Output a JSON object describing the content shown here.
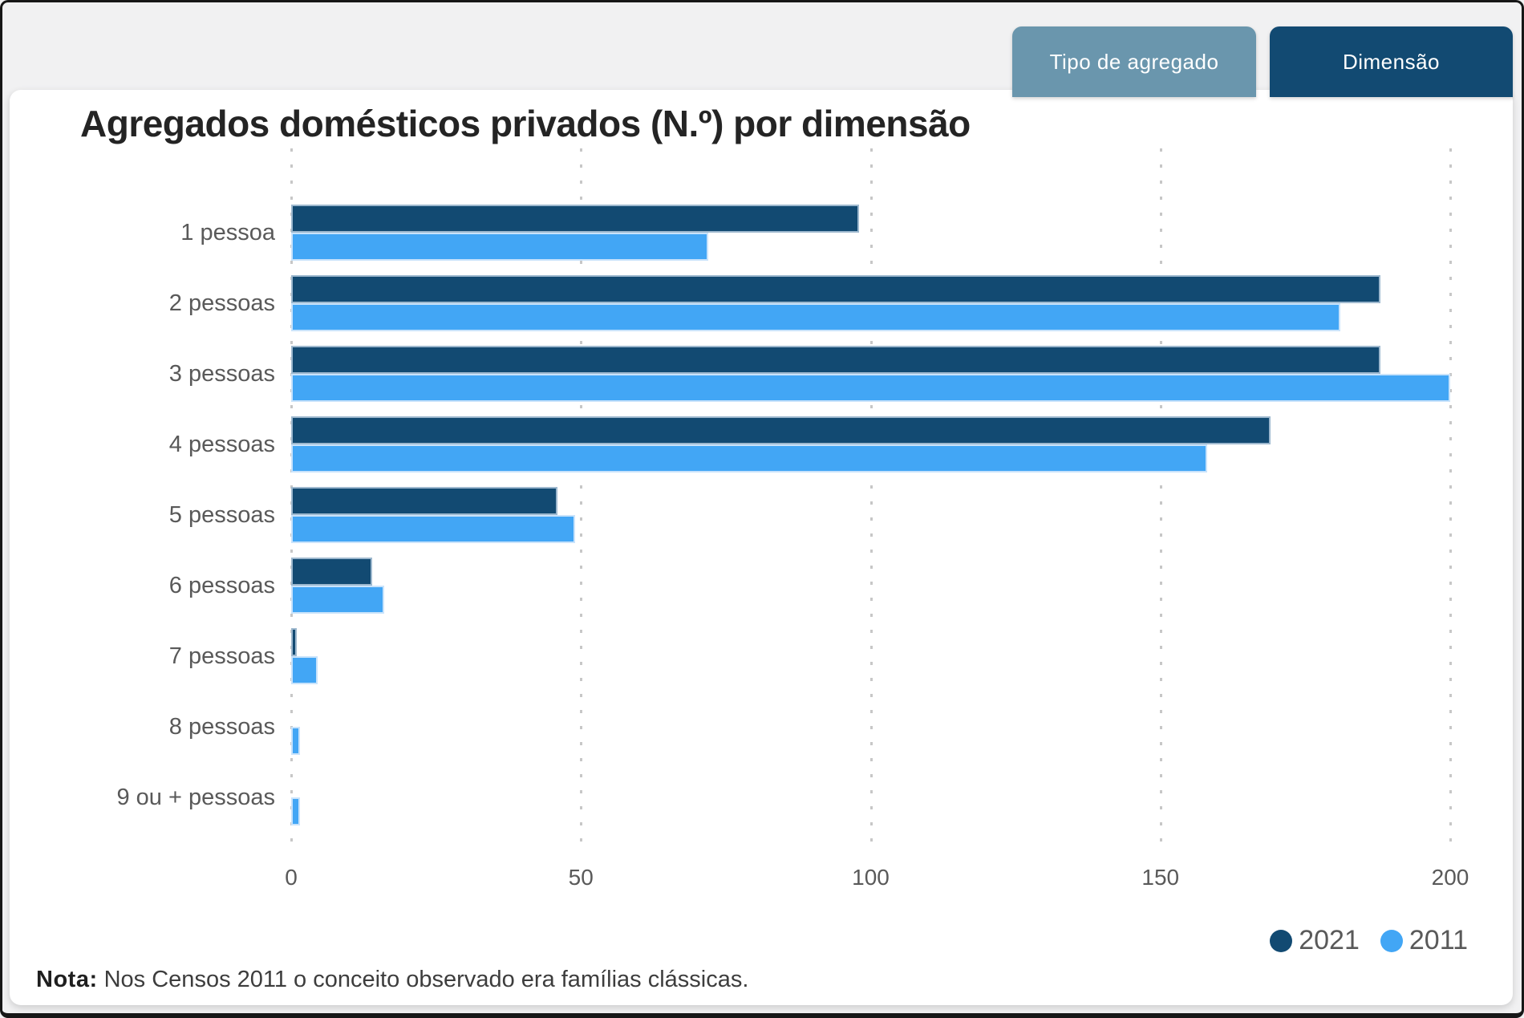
{
  "tabs": [
    {
      "label": "Tipo de agregado",
      "active": false,
      "color": "#6A96AD"
    },
    {
      "label": "Dimensão",
      "active": true,
      "color": "#124A72"
    }
  ],
  "note": {
    "label": "Nota:",
    "text": "Nos Censos 2011 o conceito observado era famílias clássicas."
  },
  "colors": {
    "background": "#f1f1f2",
    "card": "#ffffff",
    "text_gray": "#595959",
    "title_text": "#242424",
    "gridline": "#c7c7c7"
  },
  "chart_data": {
    "type": "bar",
    "orientation": "horizontal",
    "title": "Agregados domésticos privados (N.º) por dimensão",
    "categories": [
      "1 pessoa",
      "2 pessoas",
      "3 pessoas",
      "4 pessoas",
      "5 pessoas",
      "6 pessoas",
      "7 pessoas",
      "8 pessoas",
      "9 ou + pessoas"
    ],
    "series": [
      {
        "name": "2021",
        "color": "#124A72",
        "border": "#9DB8CE",
        "values": [
          98,
          188,
          188,
          169,
          46,
          14,
          1,
          0,
          0
        ]
      },
      {
        "name": "2011",
        "color": "#42A6F5",
        "border": "#C9E3FB",
        "values": [
          72,
          181,
          200,
          158,
          49,
          16,
          4.5,
          1.5,
          1.5
        ]
      }
    ],
    "xlim": [
      0,
      200
    ],
    "xticks": [
      0,
      50,
      100,
      150,
      200
    ],
    "grid": "vertical-dotted",
    "legend_position": "bottom-right"
  }
}
